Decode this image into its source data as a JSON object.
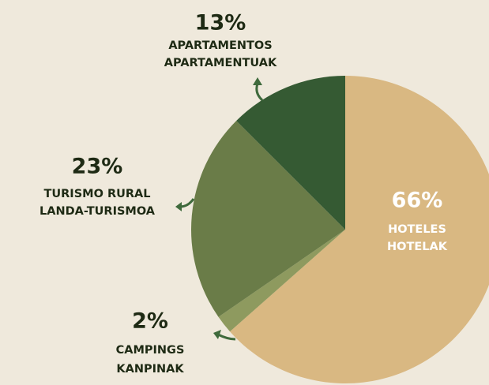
{
  "chart_data": {
    "type": "pie",
    "categories": [
      [
        "HOTELES",
        "HOTELAK"
      ],
      [
        "CAMPINGS",
        "KANPINAK"
      ],
      [
        "TURISMO RURAL",
        "LANDA-TURISMOA"
      ],
      [
        "APARTAMENTOS",
        "APARTAMENTUAK"
      ]
    ],
    "values": [
      66,
      2,
      23,
      13
    ],
    "value_labels": [
      "66%",
      "2%",
      "23%",
      "13%"
    ],
    "colors": [
      "#d9b882",
      "#8e9a5f",
      "#6a7c48",
      "#355a33"
    ]
  }
}
